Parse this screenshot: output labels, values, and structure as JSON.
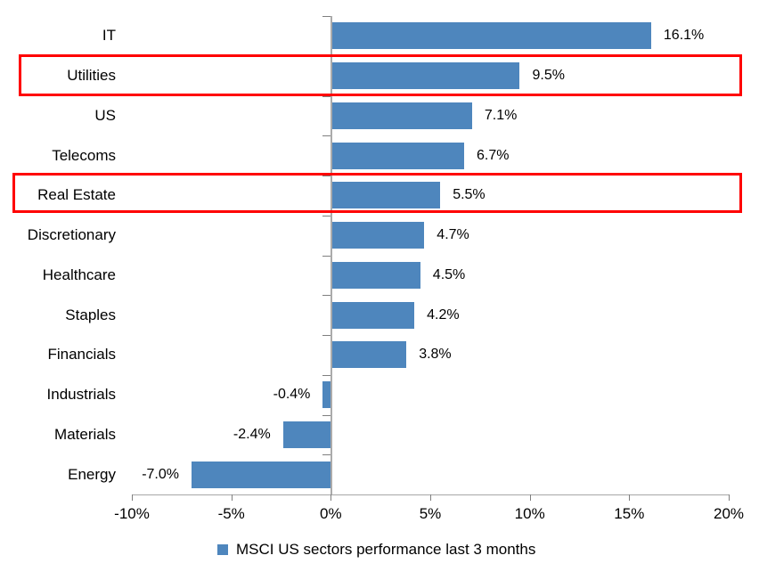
{
  "chart_data": {
    "type": "bar",
    "orientation": "horizontal",
    "title": "",
    "categories": [
      "IT",
      "Utilities",
      "US",
      "Telecoms",
      "Real Estate",
      "Discretionary",
      "Healthcare",
      "Staples",
      "Financials",
      "Industrials",
      "Materials",
      "Energy"
    ],
    "values": [
      16.1,
      9.5,
      7.1,
      6.7,
      5.5,
      4.7,
      4.5,
      4.2,
      3.8,
      -0.4,
      -2.4,
      -7.0
    ],
    "value_labels": [
      "16.1%",
      "9.5%",
      "7.1%",
      "6.7%",
      "5.5%",
      "4.7%",
      "4.5%",
      "4.2%",
      "3.8%",
      "-0.4%",
      "-2.4%",
      "-7.0%"
    ],
    "highlighted_categories": [
      "Utilities",
      "Real Estate"
    ],
    "xlim": [
      -10,
      20
    ],
    "x_tick_values": [
      -10,
      -5,
      0,
      5,
      10,
      15,
      20
    ],
    "x_tick_labels": [
      "-10%",
      "-5%",
      "0%",
      "5%",
      "10%",
      "15%",
      "20%"
    ],
    "grid": false,
    "legend": "MSCI US sectors performance last 3 months",
    "legend_position": "bottom",
    "colors": {
      "bar": "#4E86BD",
      "highlight_border": "#FF0000",
      "axis_line": "#A6A6A6",
      "tick_mark": "#7F7F7F",
      "zero_line": "#ABABAB",
      "text": "#000000"
    }
  }
}
